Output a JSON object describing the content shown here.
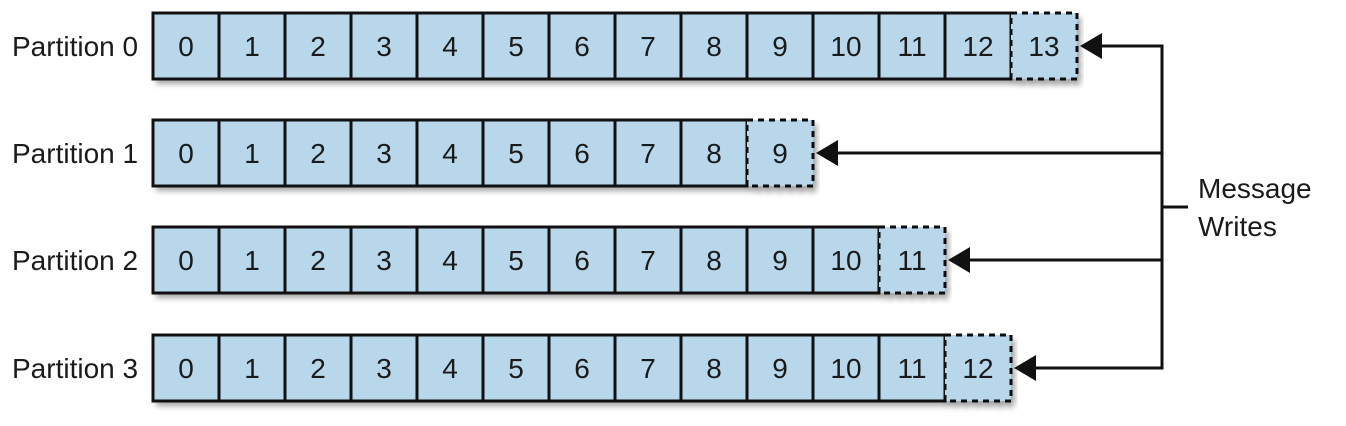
{
  "diagram": {
    "colors": {
      "cell_fill": "#b8d7ea",
      "cell_stroke": "#111111",
      "arrow": "#111111",
      "text": "#1a1a1a",
      "shadow": "#9a9a9a"
    },
    "partitions": [
      {
        "label": "Partition 0",
        "written_offsets": [
          "0",
          "1",
          "2",
          "3",
          "4",
          "5",
          "6",
          "7",
          "8",
          "9",
          "10",
          "11",
          "12"
        ],
        "next_offset": "13"
      },
      {
        "label": "Partition 1",
        "written_offsets": [
          "0",
          "1",
          "2",
          "3",
          "4",
          "5",
          "6",
          "7",
          "8"
        ],
        "next_offset": "9"
      },
      {
        "label": "Partition 2",
        "written_offsets": [
          "0",
          "1",
          "2",
          "3",
          "4",
          "5",
          "6",
          "7",
          "8",
          "9",
          "10"
        ],
        "next_offset": "11"
      },
      {
        "label": "Partition 3",
        "written_offsets": [
          "0",
          "1",
          "2",
          "3",
          "4",
          "5",
          "6",
          "7",
          "8",
          "9",
          "10",
          "11"
        ],
        "next_offset": "12"
      }
    ],
    "annotation": {
      "lines": [
        "Message",
        "Writes"
      ]
    }
  }
}
